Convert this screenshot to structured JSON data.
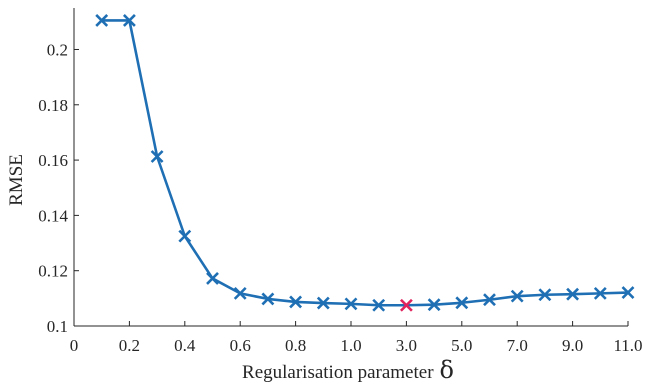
{
  "chart_data": {
    "type": "line",
    "xlabel": "Regularisation parameter",
    "xlabel_symbol": "δ",
    "ylabel": "RMSE",
    "x_tick_labels": [
      "0",
      "0.2",
      "0.4",
      "0.6",
      "0.8",
      "1.0",
      "3.0",
      "5.0",
      "7.0",
      "9.0",
      "11.0"
    ],
    "y_ticks": [
      0.1,
      0.12,
      0.14,
      0.16,
      0.18,
      0.2
    ],
    "y_tick_labels": [
      "0.1",
      "0.12",
      "0.14",
      "0.16",
      "0.18",
      "0.2"
    ],
    "ylim": [
      0.1,
      0.215
    ],
    "grid": false,
    "legend": "none",
    "series": [
      {
        "x": [
          0.1,
          0.2,
          0.3,
          0.4,
          0.5,
          0.6,
          0.7,
          0.8,
          0.9,
          1.0,
          2.0,
          3.0,
          4.0,
          5.0,
          6.0,
          7.0,
          8.0,
          9.0,
          10.0,
          11.0
        ],
        "values": [
          0.2105,
          0.2105,
          0.1613,
          0.1325,
          0.1172,
          0.1118,
          0.1098,
          0.1087,
          0.1083,
          0.108,
          0.1075,
          0.1075,
          0.1077,
          0.1084,
          0.1095,
          0.1108,
          0.1113,
          0.1115,
          0.1118,
          0.1121
        ],
        "color": "#1f6fb4",
        "marker": "x"
      }
    ],
    "highlight": {
      "x": 3.0,
      "y": 0.1075,
      "color": "#e0245e",
      "marker": "x"
    }
  }
}
